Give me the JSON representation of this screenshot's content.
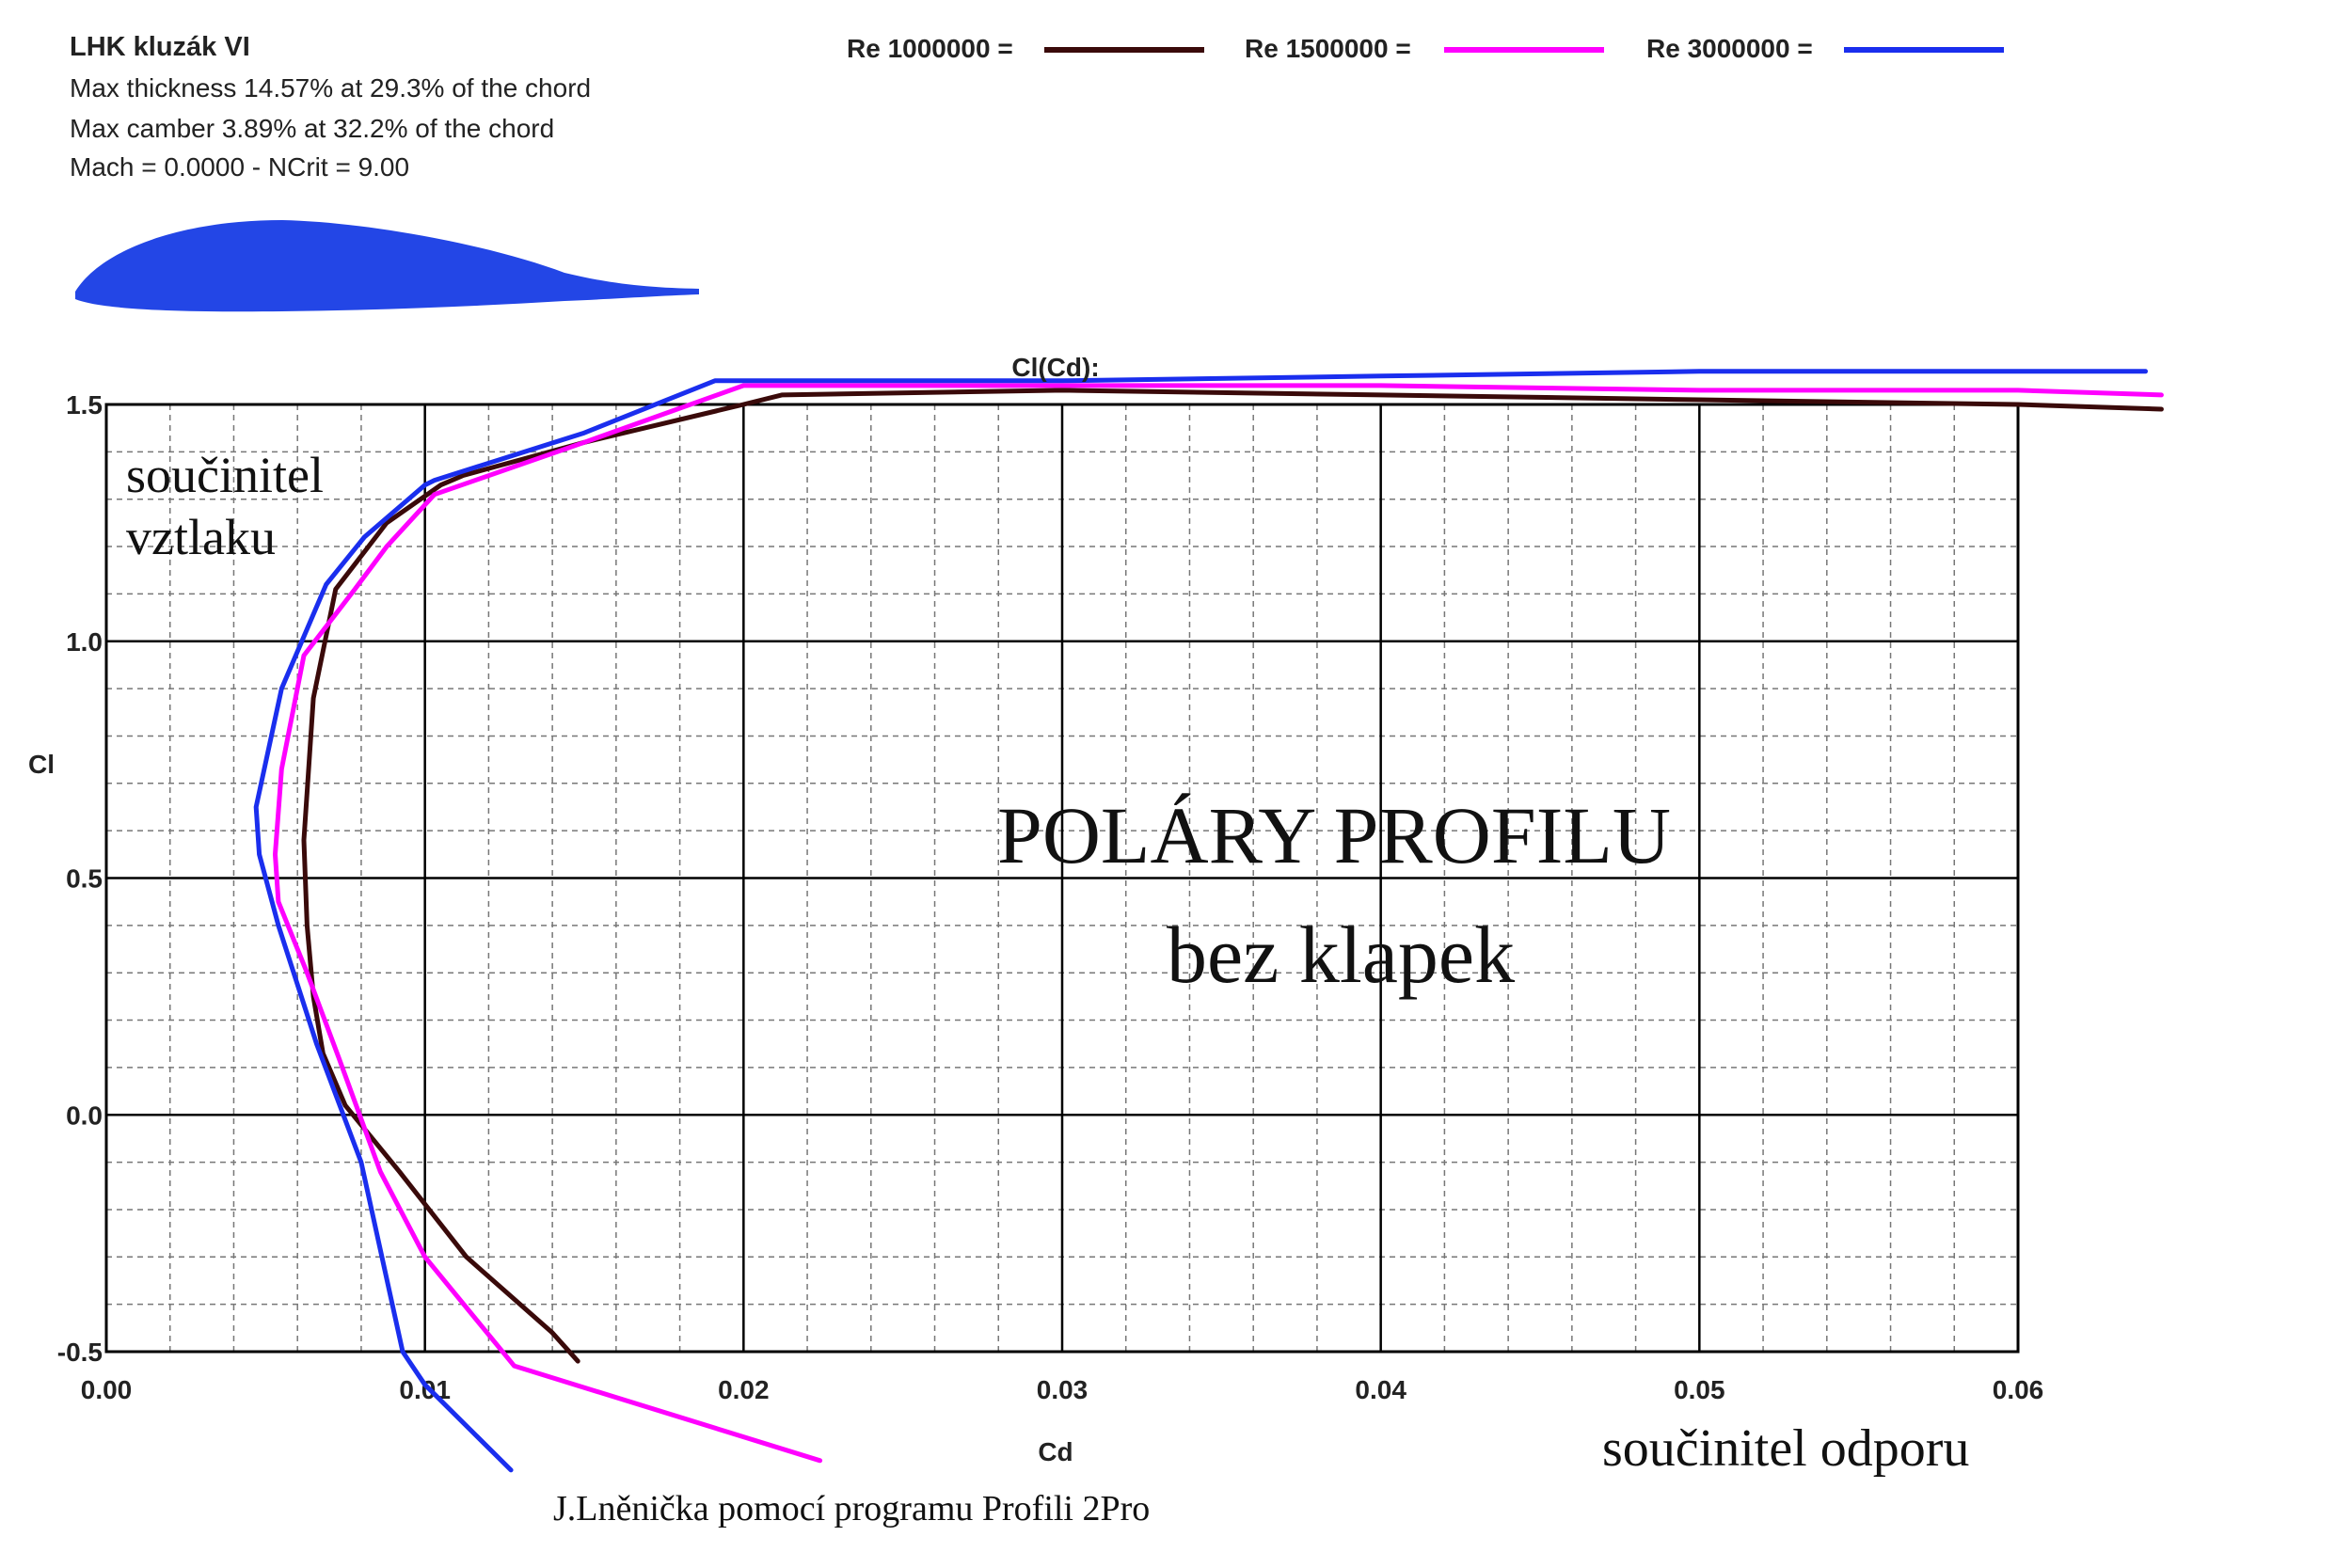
{
  "header": {
    "airfoil_name": "LHK kluzák VI",
    "thickness_text": "Max thickness 14.57% at 29.3% of the chord",
    "camber_text": "Max camber 3.89% at 32.2% of the chord",
    "mach_text": "Mach = 0.0000 - NCrit = 9.00"
  },
  "legend": [
    {
      "label": "Re 1000000 =",
      "color": "#3a0a0a"
    },
    {
      "label": "Re 1500000 =",
      "color": "#ff00ff"
    },
    {
      "label": "Re 3000000 =",
      "color": "#1a2eee"
    }
  ],
  "annotations": {
    "lift_line1": "součinitel",
    "lift_line2": "vztlaku",
    "title_main": "POLÁRY  PROFILU",
    "title_sub": "bez klapek",
    "drag": "součinitel odporu",
    "credit": "J.Lněnička pomocí programu Profili 2Pro"
  },
  "colors": {
    "grid_major": "#000000",
    "grid_minor": "#777777",
    "airfoil_fill": "#2346e6"
  },
  "chart_data": {
    "type": "line",
    "title": "Cl(Cd):",
    "xlabel": "Cd",
    "ylabel": "Cl",
    "xlim": [
      0,
      0.06
    ],
    "ylim": [
      -0.5,
      1.5
    ],
    "x_ticks": [
      "0.00",
      "0.01",
      "0.02",
      "0.03",
      "0.04",
      "0.05",
      "0.06"
    ],
    "y_ticks": [
      "-0.5",
      "0.0",
      "0.5",
      "1.0",
      "1.5"
    ],
    "grid": true,
    "legend_position": "top",
    "series": [
      {
        "name": "Re 1000000",
        "color": "#3a0a0a",
        "x": [
          0.0148,
          0.014,
          0.0113,
          0.0092,
          0.0075,
          0.0068,
          0.0065,
          0.0063,
          0.0062,
          0.0065,
          0.0072,
          0.0088,
          0.0105,
          0.0112,
          0.015,
          0.02,
          0.0212,
          0.03,
          0.04,
          0.05,
          0.06,
          0.0645
        ],
        "y": [
          -0.52,
          -0.46,
          -0.3,
          -0.12,
          0.02,
          0.13,
          0.25,
          0.4,
          0.58,
          0.88,
          1.11,
          1.25,
          1.33,
          1.35,
          1.42,
          1.5,
          1.52,
          1.53,
          1.52,
          1.51,
          1.5,
          1.49
        ]
      },
      {
        "name": "Re 1500000",
        "color": "#ff00ff",
        "x": [
          0.0224,
          0.0128,
          0.01,
          0.0086,
          0.0073,
          0.0063,
          0.0054,
          0.0053,
          0.0055,
          0.0062,
          0.0078,
          0.0088,
          0.0103,
          0.015,
          0.02,
          0.03,
          0.04,
          0.05,
          0.06,
          0.0645
        ],
        "y": [
          -0.73,
          -0.53,
          -0.3,
          -0.12,
          0.12,
          0.3,
          0.45,
          0.55,
          0.73,
          0.97,
          1.11,
          1.2,
          1.31,
          1.42,
          1.54,
          1.54,
          1.54,
          1.53,
          1.53,
          1.52
        ]
      },
      {
        "name": "Re 3000000",
        "color": "#1a2eee",
        "x": [
          0.0127,
          0.01,
          0.0093,
          0.008,
          0.0066,
          0.0054,
          0.0048,
          0.0047,
          0.0055,
          0.0069,
          0.0081,
          0.01,
          0.0103,
          0.015,
          0.0191,
          0.03,
          0.04,
          0.05,
          0.06,
          0.064
        ],
        "y": [
          -0.75,
          -0.57,
          -0.5,
          -0.1,
          0.15,
          0.4,
          0.55,
          0.65,
          0.9,
          1.12,
          1.22,
          1.33,
          1.34,
          1.44,
          1.55,
          1.55,
          1.56,
          1.57,
          1.57,
          1.57
        ]
      }
    ]
  }
}
